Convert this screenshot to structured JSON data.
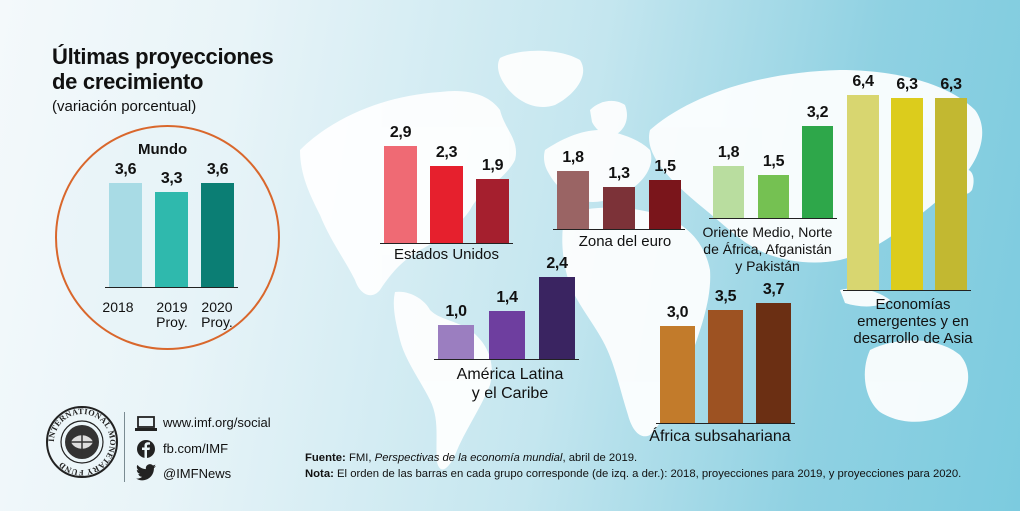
{
  "title_line1": "Últimas proyecciones",
  "title_line2": "de crecimiento",
  "subtitle": "(variación porcentual)",
  "chart_data": {
    "type": "bar",
    "title": "Últimas proyecciones de crecimiento",
    "subtitle": "(variación porcentual)",
    "series_names": [
      "2018",
      "2019 Proy.",
      "2020 Proy."
    ],
    "world": {
      "name": "Mundo",
      "categories": [
        "2018",
        "2019",
        "2020"
      ],
      "sublabels": [
        "",
        "Proy.",
        "Proy."
      ],
      "values": [
        3.6,
        3.3,
        3.6
      ],
      "labels": [
        "3,6",
        "3,3",
        "3,6"
      ],
      "colors": [
        "#a8dbe5",
        "#2fb9ad",
        "#0b7e74"
      ]
    },
    "groups": [
      {
        "name": "Estados Unidos",
        "values": [
          2.9,
          2.3,
          1.9
        ],
        "labels": [
          "2,9",
          "2,3",
          "1,9"
        ],
        "colors": [
          "#ef6a74",
          "#e6202d",
          "#a51f2e"
        ]
      },
      {
        "name": "Zona del euro",
        "values": [
          1.8,
          1.3,
          1.5
        ],
        "labels": [
          "1,8",
          "1,3",
          "1,5"
        ],
        "colors": [
          "#9a6464",
          "#7c3238",
          "#7a151b"
        ]
      },
      {
        "name": "Oriente Medio, Norte de África, Afganistán y Pakistán",
        "name_lines": [
          "Oriente Medio, Norte",
          "de África, Afganistán",
          "y Pakistán"
        ],
        "values": [
          1.8,
          1.5,
          3.2
        ],
        "labels": [
          "1,8",
          "1,5",
          "3,2"
        ],
        "colors": [
          "#b9dd9f",
          "#75c152",
          "#2ea74a"
        ]
      },
      {
        "name": "Economías emergentes y en desarrollo de Asia",
        "name_lines": [
          "Economías",
          "emergentes y en",
          "desarrollo de Asia"
        ],
        "values": [
          6.4,
          6.3,
          6.3
        ],
        "labels": [
          "6,4",
          "6,3",
          "6,3"
        ],
        "colors": [
          "#d8d670",
          "#dccc1c",
          "#c2b831"
        ]
      },
      {
        "name": "América Latina y el Caribe",
        "name_lines": [
          "América Latina",
          "y el Caribe"
        ],
        "values": [
          1.0,
          1.4,
          2.4
        ],
        "labels": [
          "1,0",
          "1,4",
          "2,4"
        ],
        "colors": [
          "#9b7ec0",
          "#6e3e9f",
          "#3a2461"
        ]
      },
      {
        "name": "África subsahariana",
        "values": [
          3.0,
          3.5,
          3.7
        ],
        "labels": [
          "3,0",
          "3,5",
          "3,7"
        ],
        "colors": [
          "#c27b2b",
          "#9d5222",
          "#6b2f13"
        ]
      }
    ]
  },
  "social": {
    "web": "www.imf.org/social",
    "facebook": "fb.com/IMF",
    "twitter": "@IMFNews"
  },
  "logo_text": "INTERNATIONAL MONETARY FUND",
  "footer": {
    "source_label": "Fuente:",
    "source_pre": "FMI, ",
    "source_italic": "Perspectivas de la economía mundial",
    "source_post": ", abril de 2019.",
    "note_label": "Nota:",
    "note_text": "El orden de las barras en cada grupo corresponde (de izq. a der.): 2018, proyecciones para 2019, y proyecciones para 2020."
  }
}
